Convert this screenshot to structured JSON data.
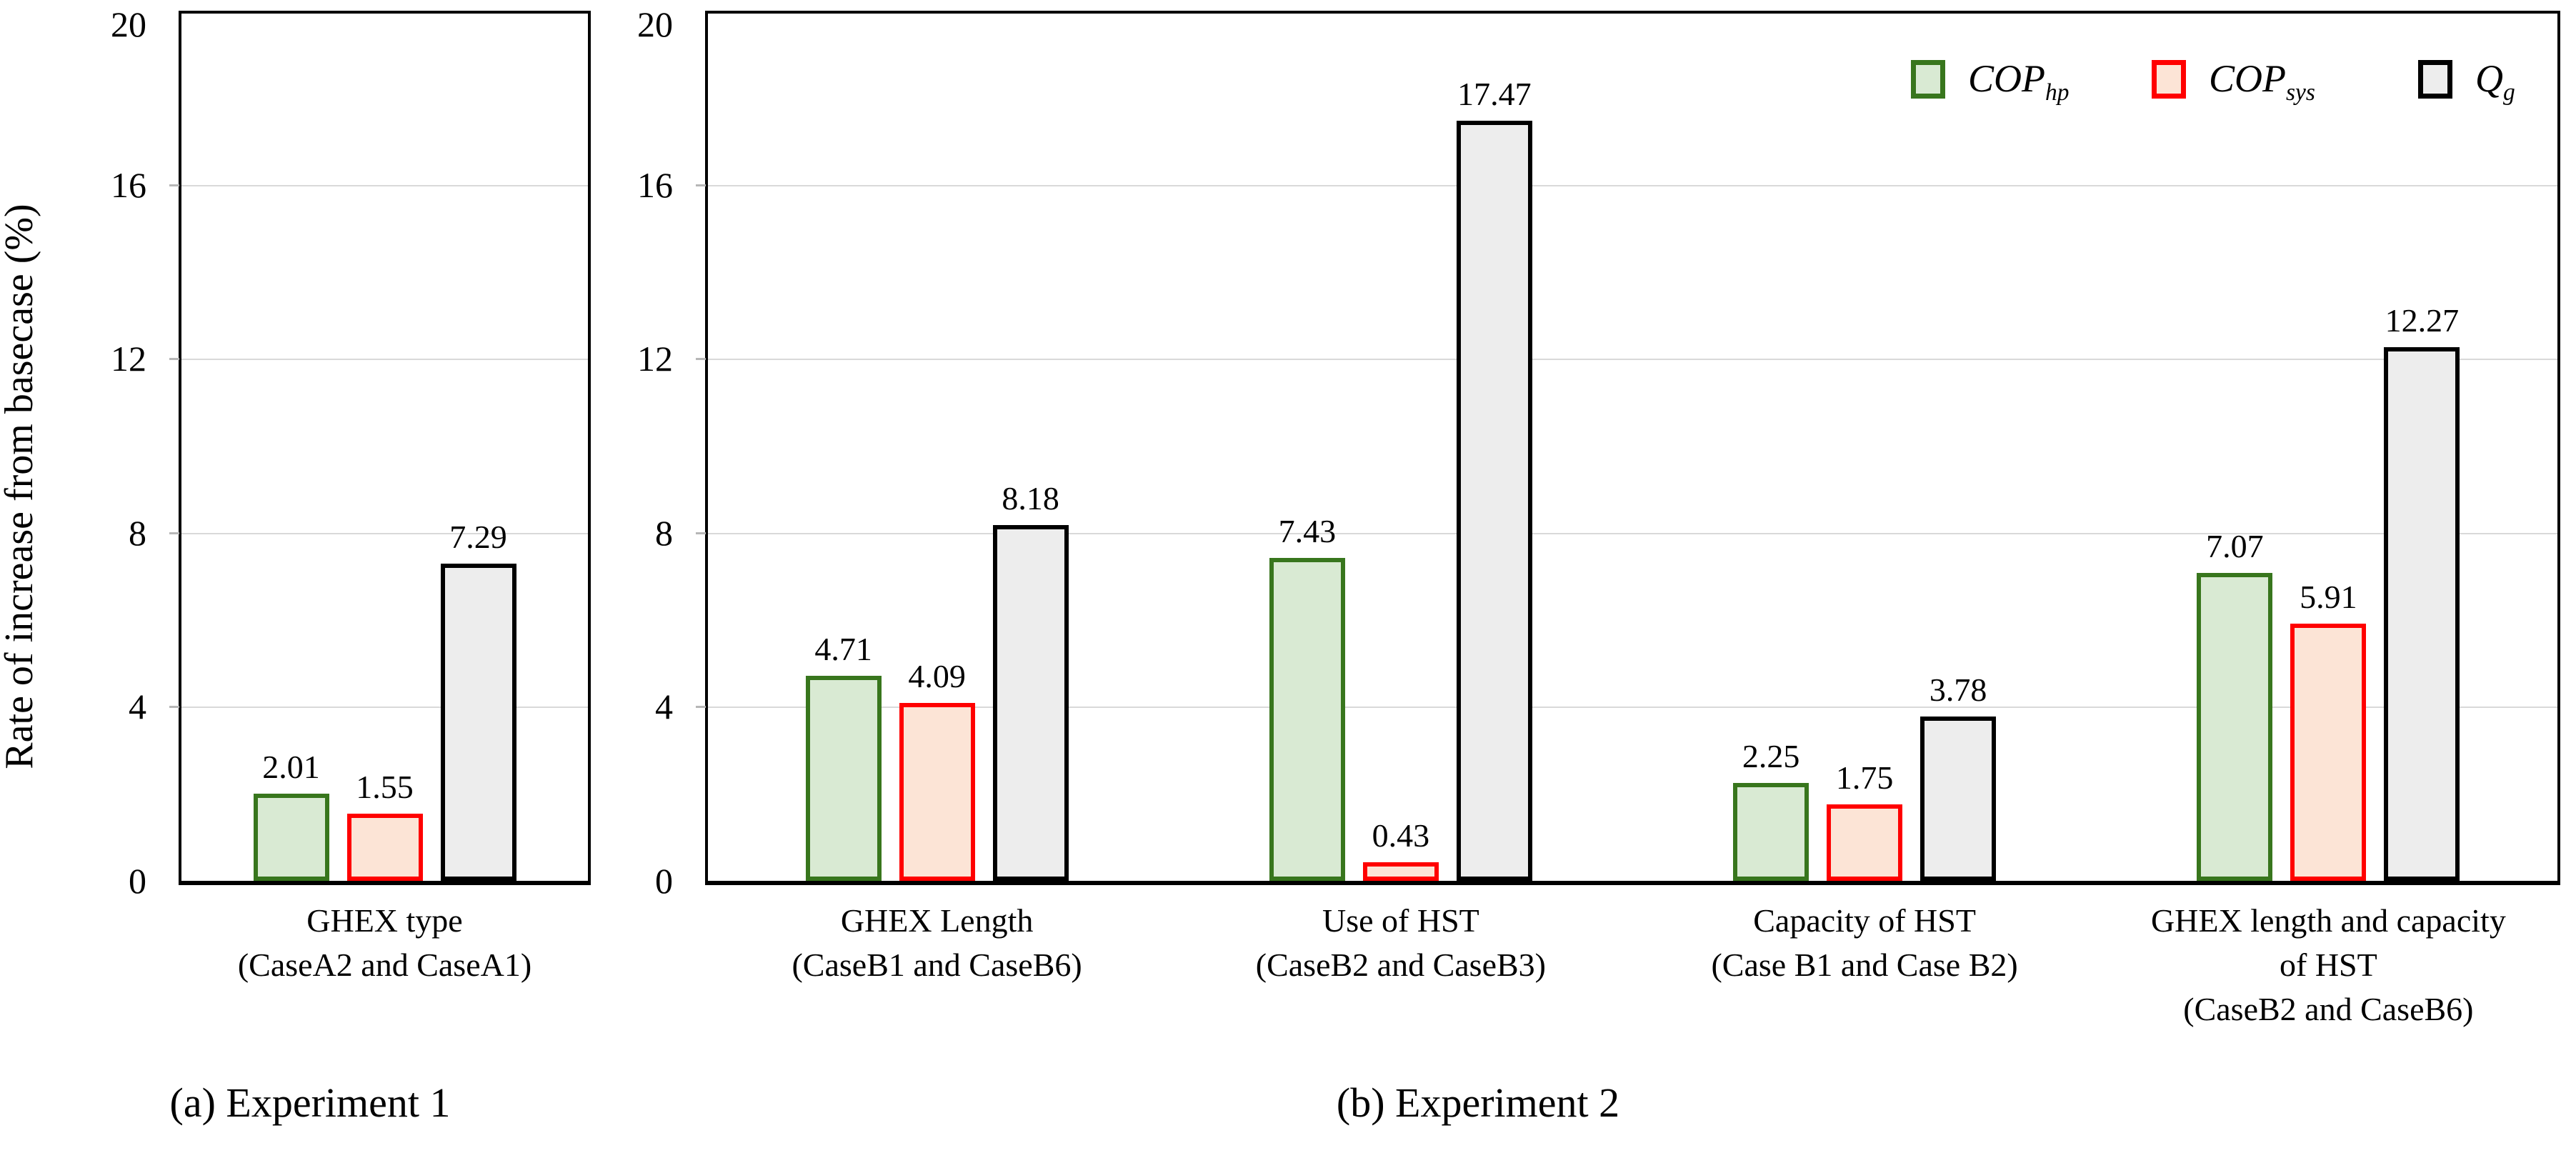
{
  "figure": {
    "y_axis_label": "Rate of increase from basecase (%)",
    "y_ticks": [
      "0",
      "4",
      "8",
      "12",
      "16",
      "20"
    ],
    "grid_values": [
      4,
      8,
      12,
      16
    ],
    "colors": {
      "cop_hp_fill": "#d9ead3",
      "cop_hp_border": "#38761d",
      "cop_sys_fill": "#fce4d6",
      "cop_sys_border": "#ff0000",
      "qg_fill": "#ededed",
      "qg_border": "#000000",
      "gridline": "#d9d9d9",
      "axis": "#000000"
    }
  },
  "chart_data": [
    {
      "type": "bar",
      "title": "(a) Experiment 1",
      "caption": "(a) Experiment 1",
      "xlabel": "",
      "ylabel": "Rate of increase from basecase (%)",
      "ylim": [
        0,
        20
      ],
      "yticks": [
        0,
        4,
        8,
        12,
        16,
        20
      ],
      "grid": true,
      "legend_position": "none",
      "categories": [
        {
          "lines": [
            "GHEX type",
            "(CaseA2 and CaseA1)"
          ]
        }
      ],
      "series": [
        {
          "name": "COP_hp",
          "label_main": "COP",
          "label_sub": "hp",
          "fill": "#d9ead3",
          "border": "#38761d",
          "values": [
            2.01
          ]
        },
        {
          "name": "COP_sys",
          "label_main": "COP",
          "label_sub": "sys",
          "fill": "#fce4d6",
          "border": "#ff0000",
          "values": [
            1.55
          ]
        },
        {
          "name": "Q_g",
          "label_main": "Q",
          "label_sub": "g",
          "fill": "#ededed",
          "border": "#000000",
          "values": [
            7.29
          ]
        }
      ]
    },
    {
      "type": "bar",
      "title": "(b) Experiment 2",
      "caption": "(b) Experiment 2",
      "xlabel": "",
      "ylabel": "Rate of increase from basecase (%)",
      "ylim": [
        0,
        20
      ],
      "yticks": [
        0,
        4,
        8,
        12,
        16,
        20
      ],
      "grid": true,
      "legend_position": "top-right",
      "categories": [
        {
          "lines": [
            "GHEX Length",
            "(CaseB1 and CaseB6)"
          ]
        },
        {
          "lines": [
            "Use of HST",
            "(CaseB2 and CaseB3)"
          ]
        },
        {
          "lines": [
            "Capacity of HST",
            "(Case B1 and Case B2)"
          ]
        },
        {
          "lines": [
            "GHEX length and capacity",
            "of HST",
            "(CaseB2 and CaseB6)"
          ]
        }
      ],
      "series": [
        {
          "name": "COP_hp",
          "label_main": "COP",
          "label_sub": "hp",
          "fill": "#d9ead3",
          "border": "#38761d",
          "values": [
            4.71,
            7.43,
            2.25,
            7.07
          ]
        },
        {
          "name": "COP_sys",
          "label_main": "COP",
          "label_sub": "sys",
          "fill": "#fce4d6",
          "border": "#ff0000",
          "values": [
            4.09,
            0.43,
            1.75,
            5.91
          ]
        },
        {
          "name": "Q_g",
          "label_main": "Q",
          "label_sub": "g",
          "fill": "#ededed",
          "border": "#000000",
          "values": [
            8.18,
            17.47,
            3.78,
            12.27
          ]
        }
      ]
    }
  ]
}
